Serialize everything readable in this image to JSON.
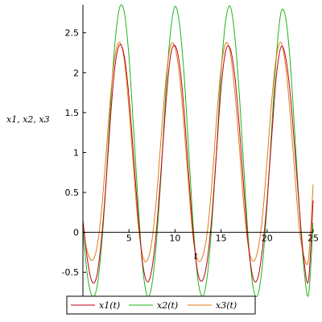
{
  "chart_data": {
    "type": "line",
    "xlabel": "t",
    "ylabel": "x1, x2, x3",
    "xlim": [
      0,
      25
    ],
    "ylim": [
      -0.8,
      2.85
    ],
    "x_ticks": [
      {
        "value": 5,
        "label": "5"
      },
      {
        "value": 10,
        "label": "10"
      },
      {
        "value": 15,
        "label": "15"
      },
      {
        "value": 20,
        "label": "20"
      },
      {
        "value": 25,
        "label": "25"
      }
    ],
    "y_ticks": [
      {
        "value": -0.5,
        "label": "-0.5"
      },
      {
        "value": 0,
        "label": "0"
      },
      {
        "value": 0.5,
        "label": "0.5"
      },
      {
        "value": 1,
        "label": "1"
      },
      {
        "value": 1.5,
        "label": "1.5"
      },
      {
        "value": 2,
        "label": "2"
      },
      {
        "value": 2.5,
        "label": "2.5"
      }
    ],
    "grid": false,
    "legend_position": "bottom",
    "series": [
      {
        "name": "x1(t)",
        "color": "#c0001a",
        "x": [
          0,
          0.5,
          1,
          1.5,
          2,
          2.5,
          3,
          3.5,
          4,
          4.5,
          5,
          5.5,
          6,
          6.5,
          7,
          7.5,
          8,
          8.5,
          9,
          9.5,
          10,
          10.5,
          11,
          11.5,
          12,
          12.5,
          13,
          13.5,
          14,
          14.5,
          15,
          15.5,
          16,
          16.5,
          17,
          17.5,
          18,
          18.5,
          19,
          19.5,
          20,
          20.5,
          21,
          21.5,
          22,
          22.5,
          23,
          23.5,
          24,
          24.5,
          25
        ],
        "values": [
          0.15,
          -0.35,
          -0.62,
          -0.55,
          -0.1,
          0.6,
          1.45,
          2.1,
          2.35,
          2.2,
          1.7,
          0.95,
          0.2,
          -0.4,
          -0.62,
          -0.45,
          0.05,
          0.8,
          1.6,
          2.2,
          2.34,
          2.1,
          1.5,
          0.7,
          -0.05,
          -0.52,
          -0.6,
          -0.35,
          0.2,
          1.0,
          1.8,
          2.27,
          2.3,
          1.95,
          1.3,
          0.5,
          -0.2,
          -0.58,
          -0.57,
          -0.2,
          0.4,
          1.2,
          1.95,
          2.32,
          2.2,
          1.75,
          1.05,
          0.3,
          -0.35,
          -0.6,
          0.4
        ]
      },
      {
        "name": "x2(t)",
        "color": "#1db51d",
        "x": [
          0,
          0.5,
          1,
          1.5,
          2,
          2.5,
          3,
          3.5,
          4,
          4.5,
          5,
          5.5,
          6,
          6.5,
          7,
          7.5,
          8,
          8.5,
          9,
          9.5,
          10,
          10.5,
          11,
          11.5,
          12,
          12.5,
          13,
          13.5,
          14,
          14.5,
          15,
          15.5,
          16,
          16.5,
          17,
          17.5,
          18,
          18.5,
          19,
          19.5,
          20,
          20.5,
          21,
          21.5,
          22,
          22.5,
          23,
          23.5,
          24,
          24.5,
          25
        ],
        "values": [
          0.0,
          -0.55,
          -0.8,
          -0.7,
          -0.2,
          0.6,
          1.6,
          2.4,
          2.82,
          2.75,
          2.2,
          1.3,
          0.35,
          -0.45,
          -0.8,
          -0.65,
          -0.1,
          0.75,
          1.75,
          2.5,
          2.83,
          2.6,
          1.95,
          1.0,
          0.05,
          -0.6,
          -0.8,
          -0.55,
          0.1,
          1.0,
          2.0,
          2.65,
          2.83,
          2.45,
          1.7,
          0.75,
          -0.15,
          -0.7,
          -0.78,
          -0.4,
          0.35,
          1.3,
          2.2,
          2.75,
          2.7,
          2.15,
          1.25,
          0.3,
          -0.45,
          -0.78,
          0.12
        ]
      },
      {
        "name": "x3(t)",
        "color": "#e07b12",
        "x": [
          0,
          0.5,
          1,
          1.5,
          2,
          2.5,
          3,
          3.5,
          4,
          4.5,
          5,
          5.5,
          6,
          6.5,
          7,
          7.5,
          8,
          8.5,
          9,
          9.5,
          10,
          10.5,
          11,
          11.5,
          12,
          12.5,
          13,
          13.5,
          14,
          14.5,
          15,
          15.5,
          16,
          16.5,
          17,
          17.5,
          18,
          18.5,
          19,
          19.5,
          20,
          20.5,
          21,
          21.5,
          22,
          22.5,
          23,
          23.5,
          24,
          24.5,
          25
        ],
        "values": [
          0.05,
          -0.25,
          -0.35,
          -0.2,
          0.25,
          0.95,
          1.7,
          2.22,
          2.38,
          2.15,
          1.55,
          0.8,
          0.1,
          -0.3,
          -0.35,
          -0.1,
          0.45,
          1.2,
          1.9,
          2.33,
          2.32,
          1.95,
          1.3,
          0.55,
          -0.1,
          -0.35,
          -0.3,
          0.0,
          0.6,
          1.4,
          2.05,
          2.37,
          2.25,
          1.75,
          1.05,
          0.3,
          -0.2,
          -0.36,
          -0.22,
          0.2,
          0.9,
          1.65,
          2.2,
          2.38,
          2.1,
          1.5,
          0.75,
          0.05,
          -0.3,
          -0.33,
          0.6
        ]
      }
    ]
  }
}
